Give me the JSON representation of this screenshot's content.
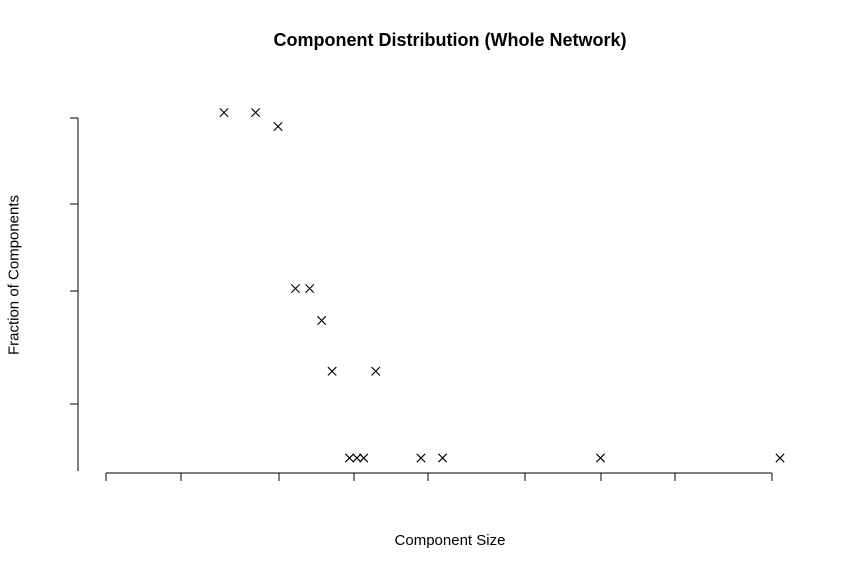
{
  "chart_data": {
    "type": "scatter",
    "title": "Component Distribution (Whole Network)",
    "xlabel": "Component Size",
    "ylabel": "Fraction of Components",
    "x_scale": "log",
    "y_scale": "log",
    "tick_labels_shown": false,
    "marker": "x",
    "grid": false,
    "points": [
      {
        "x": 2,
        "y": 0.5
      },
      {
        "x": 3,
        "y": 0.5
      },
      {
        "x": 4,
        "y": 0.4
      },
      {
        "x": 5,
        "y": 0.03
      },
      {
        "x": 6,
        "y": 0.03
      },
      {
        "x": 7,
        "y": 0.018
      },
      {
        "x": 8,
        "y": 0.008
      },
      {
        "x": 10,
        "y": 0.002
      },
      {
        "x": 11,
        "y": 0.002
      },
      {
        "x": 12,
        "y": 0.002
      },
      {
        "x": 14,
        "y": 0.008
      },
      {
        "x": 25,
        "y": 0.002
      },
      {
        "x": 33,
        "y": 0.002
      },
      {
        "x": 250,
        "y": 0.002
      },
      {
        "x": 2500,
        "y": 0.002
      }
    ]
  }
}
